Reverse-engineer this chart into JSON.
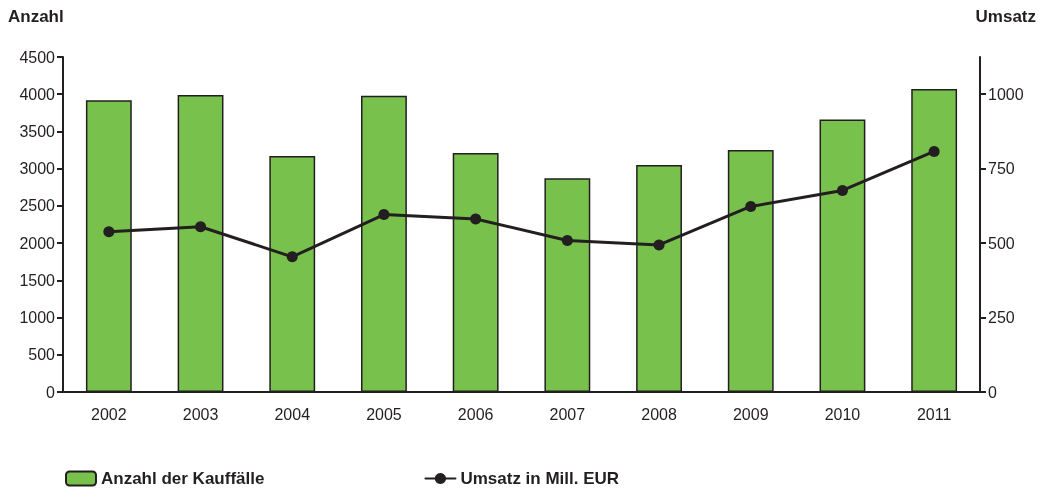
{
  "chart_data": {
    "type": "bar",
    "ylabel": "Anzahl",
    "y2label": "Umsatz",
    "categories": [
      "2002",
      "2003",
      "2004",
      "2005",
      "2006",
      "2007",
      "2008",
      "2009",
      "2010",
      "2011"
    ],
    "series": [
      {
        "name": "Anzahl der Kauffälle",
        "color": "#77c14c",
        "values": [
          3920,
          3990,
          3170,
          3980,
          3210,
          2870,
          3050,
          3250,
          3660,
          4070
        ]
      },
      {
        "name": "Umsatz in Mill. EUR",
        "type": "line",
        "axis": "y2",
        "color": "#231f20",
        "values": [
          538,
          555,
          454,
          596,
          581,
          509,
          494,
          623,
          677,
          808
        ]
      }
    ],
    "ylim": [
      0,
      4500
    ],
    "yticks": [
      0,
      500,
      1000,
      1500,
      2000,
      2500,
      3000,
      3500,
      4000,
      4500
    ],
    "y2lim": [
      0,
      1125
    ],
    "y2ticks": [
      0,
      250,
      500,
      750,
      1000
    ],
    "legend": "bottom",
    "marker": "circle",
    "line_style": "solid"
  }
}
